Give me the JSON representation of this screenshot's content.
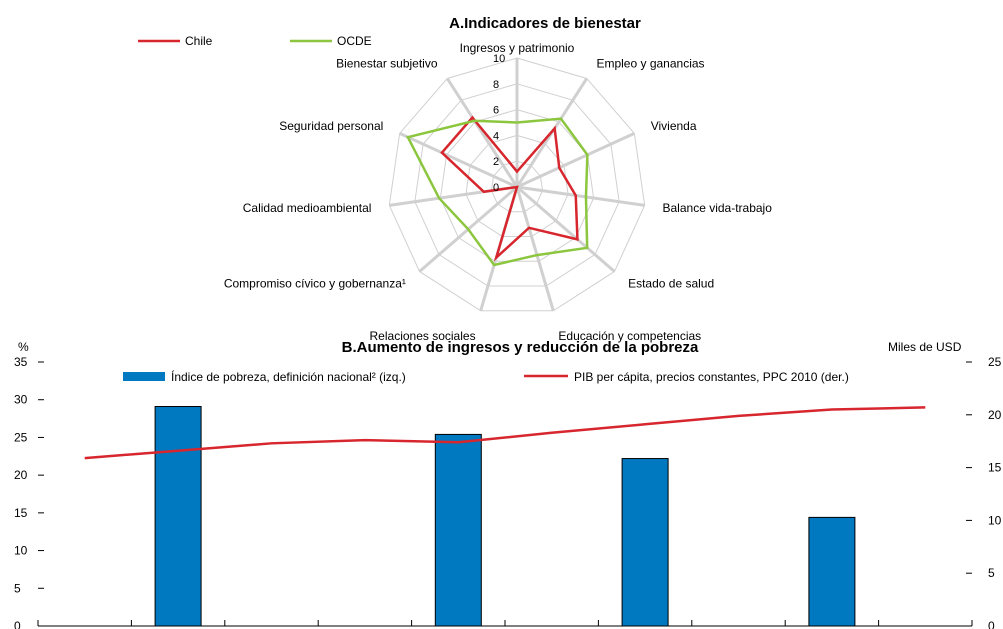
{
  "chart_data": [
    {
      "type": "radar",
      "title": "A.Indicadores de bienestar",
      "axes": [
        "Ingresos y patrimonio",
        "Empleo y ganancias",
        "Vivienda",
        "Balance vida-trabajo",
        "Estado de salud",
        "Educación y competencias",
        "Relaciones sociales",
        "Compromiso cívico y gobernanza¹",
        "Calidad medioambiental",
        "Seguridad personal",
        "Bienestar subjetivo"
      ],
      "rmin": 0,
      "rmax": 10,
      "radial_ticks": [
        "0",
        "2",
        "4",
        "6",
        "8",
        "10"
      ],
      "series": [
        {
          "name": "Chile",
          "color": "#d7262d",
          "values": [
            1.2,
            5.4,
            3.6,
            4.6,
            6.2,
            3.3,
            5.7,
            0,
            2.6,
            6.4,
            6.4
          ]
        },
        {
          "name": "OCDE",
          "color": "#8cc63f",
          "values": [
            5.0,
            6.3,
            6.0,
            5.4,
            7.2,
            5.5,
            6.3,
            5.0,
            6.1,
            9.3,
            6.1
          ]
        }
      ],
      "legend": "top-left"
    },
    {
      "type": "bar+line",
      "title": "B.Aumento de ingresos y reducción de la pobreza",
      "ylabel_left": "%",
      "ylabel_right": "Miles de USD",
      "ylim_left": [
        0,
        35
      ],
      "ylim_right": [
        0,
        25
      ],
      "yticks_left": [
        "0",
        "5",
        "10",
        "15",
        "20",
        "25",
        "30",
        "35"
      ],
      "yticks_right": [
        "0",
        "5",
        "10",
        "15",
        "20",
        "25"
      ],
      "x_periods": 10,
      "bars": {
        "name": "Índice de pobreza, definición nacional² (izq.)",
        "color": "#0079c1",
        "positions": [
          1.5,
          4.5,
          6.5,
          8.5
        ],
        "values": [
          29.1,
          25.4,
          22.2,
          14.4
        ]
      },
      "line": {
        "name": "PIB per cápita, precios constantes, PPC 2010 (der.)",
        "color": "#d7262d",
        "positions": [
          0.5,
          1.5,
          2.5,
          3.5,
          4.5,
          5.5,
          6.5,
          7.5,
          8.5,
          9.5
        ],
        "values": [
          15.9,
          16.6,
          17.3,
          17.6,
          17.4,
          18.3,
          19.1,
          19.9,
          20.5,
          20.7
        ]
      },
      "legend": "top"
    }
  ]
}
